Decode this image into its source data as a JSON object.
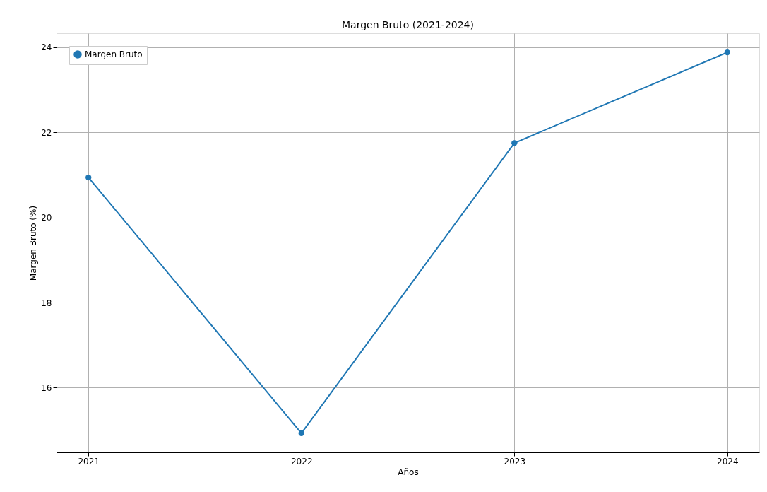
{
  "chart_data": {
    "type": "line",
    "title": "Margen Bruto (2021-2024)",
    "xlabel": "Años",
    "ylabel": "Margen Bruto (%)",
    "x": [
      2021,
      2022,
      2023,
      2024
    ],
    "series": [
      {
        "name": "Margen Bruto",
        "color": "#1f77b4",
        "values": [
          20.94,
          14.93,
          21.75,
          23.88
        ]
      }
    ],
    "xlim": [
      2020.85,
      2024.15
    ],
    "xticks": [
      2021,
      2022,
      2023,
      2024
    ],
    "ylim": [
      14.48,
      24.33
    ],
    "yticks": [
      16,
      18,
      20,
      22,
      24
    ],
    "grid": true,
    "legend": "top left",
    "marker": "circle",
    "line_style": "solid"
  }
}
